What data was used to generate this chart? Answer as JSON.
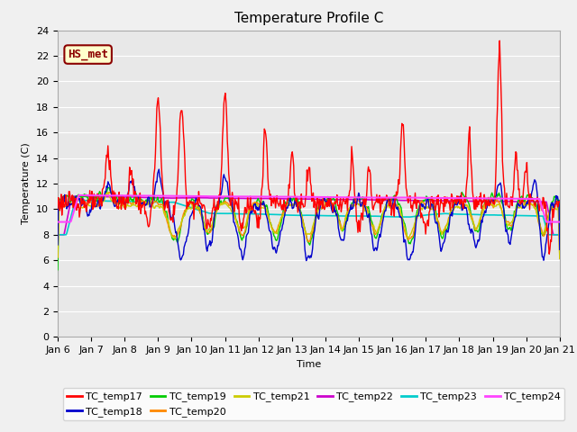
{
  "title": "Temperature Profile C",
  "xlabel": "Time",
  "ylabel": "Temperature (C)",
  "ylim": [
    0,
    24
  ],
  "yticks": [
    0,
    2,
    4,
    6,
    8,
    10,
    12,
    14,
    16,
    18,
    20,
    22,
    24
  ],
  "xtick_labels": [
    "Jan 6",
    "Jan 7",
    "Jan 8",
    "Jan 9",
    "Jan 10",
    "Jan 11",
    "Jan 12",
    "Jan 13",
    "Jan 14",
    "Jan 15",
    "Jan 16",
    "Jan 17",
    "Jan 18",
    "Jan 19",
    "Jan 20",
    "Jan 21"
  ],
  "series_colors": {
    "TC_temp17": "#ff0000",
    "TC_temp18": "#0000cc",
    "TC_temp19": "#00cc00",
    "TC_temp20": "#ff8800",
    "TC_temp21": "#cccc00",
    "TC_temp22": "#cc00cc",
    "TC_temp23": "#00cccc",
    "TC_temp24": "#ff44ff"
  },
  "annotation_text": "HS_met",
  "annotation_color": "#8B0000",
  "annotation_bg": "#ffffcc",
  "fig_bg_color": "#f0f0f0",
  "plot_bg_color": "#e8e8e8",
  "grid_color": "#ffffff",
  "title_fontsize": 11,
  "axis_fontsize": 8,
  "tick_fontsize": 8,
  "legend_fontsize": 8
}
